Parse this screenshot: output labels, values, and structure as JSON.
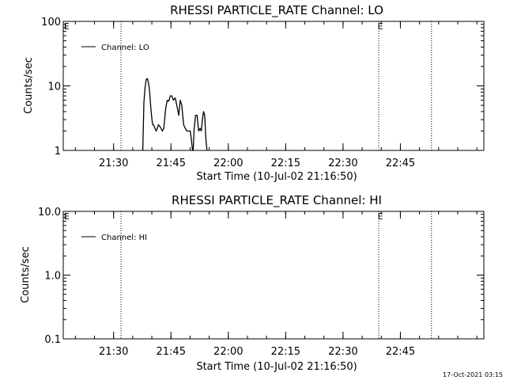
{
  "chart_data": [
    {
      "type": "line",
      "title": "RHESSI PARTICLE_RATE Channel: LO",
      "xlabel": "Start Time (10-Jul-02 21:16:50)",
      "ylabel": "Counts/sec",
      "yscale": "log",
      "ylim": [
        1,
        100
      ],
      "yticks": [
        "1",
        "10",
        "100"
      ],
      "ytick_values": [
        1,
        10,
        100
      ],
      "xlim_minutes": [
        0,
        110
      ],
      "xticks": [
        "21:30",
        "21:45",
        "22:00",
        "22:15",
        "22:30",
        "22:45"
      ],
      "xtick_minutes": [
        13.17,
        28.17,
        43.17,
        58.17,
        73.17,
        88.17
      ],
      "event_lines_minutes": [
        15.1,
        82.5,
        96.3
      ],
      "event_flags": [
        {
          "label": "E",
          "minute": 0.9
        },
        {
          "label": "E",
          "minute": 82.9
        }
      ],
      "legend": "top-left",
      "series": [
        {
          "name": "Channel: LO",
          "x": [
            20.8,
            21.1,
            21.4,
            21.7,
            22.0,
            22.3,
            22.6,
            22.9,
            23.2,
            23.4,
            23.6,
            24.0,
            24.3,
            24.6,
            24.9,
            25.4,
            25.9,
            26.3,
            26.8,
            27.2,
            27.6,
            28.0,
            28.4,
            28.8,
            29.3,
            29.7,
            30.2,
            30.6,
            31.0,
            31.5,
            31.9,
            32.3,
            32.8,
            33.2,
            33.5,
            33.8,
            34.0,
            34.2,
            34.6,
            35.0,
            35.4,
            35.8,
            36.1,
            36.4,
            36.7,
            37.0,
            37.3,
            37.6
          ],
          "y": [
            1.0,
            5.5,
            9.5,
            12.5,
            13.0,
            11.0,
            8.0,
            4.5,
            3.0,
            2.5,
            2.5,
            2.2,
            2.0,
            2.2,
            2.5,
            2.3,
            2.0,
            2.2,
            4.5,
            6.0,
            5.8,
            7.0,
            7.0,
            6.0,
            6.5,
            5.0,
            3.5,
            6.0,
            5.0,
            2.5,
            2.2,
            2.0,
            2.0,
            2.0,
            1.5,
            1.0,
            1.0,
            2.0,
            3.5,
            3.5,
            2.0,
            2.2,
            2.0,
            3.0,
            4.0,
            3.5,
            1.5,
            1.0
          ]
        }
      ]
    },
    {
      "type": "line",
      "title": "RHESSI PARTICLE_RATE Channel: HI",
      "xlabel": "Start Time (10-Jul-02 21:16:50)",
      "ylabel": "Counts/sec",
      "yscale": "log",
      "ylim": [
        0.1,
        10
      ],
      "yticks": [
        "0.1",
        "1.0",
        "10.0"
      ],
      "ytick_values": [
        0.1,
        1,
        10
      ],
      "xlim_minutes": [
        0,
        110
      ],
      "xticks": [
        "21:30",
        "21:45",
        "22:00",
        "22:15",
        "22:30",
        "22:45"
      ],
      "xtick_minutes": [
        13.17,
        28.17,
        43.17,
        58.17,
        73.17,
        88.17
      ],
      "event_lines_minutes": [
        15.1,
        82.5,
        96.3
      ],
      "event_flags": [
        {
          "label": "E",
          "minute": 0.9
        },
        {
          "label": "E",
          "minute": 82.9
        }
      ],
      "legend": "top-left",
      "series": [
        {
          "name": "Channel: HI",
          "x": [],
          "y": []
        }
      ]
    }
  ],
  "timestamp": "17-Oct-2021 03:15"
}
